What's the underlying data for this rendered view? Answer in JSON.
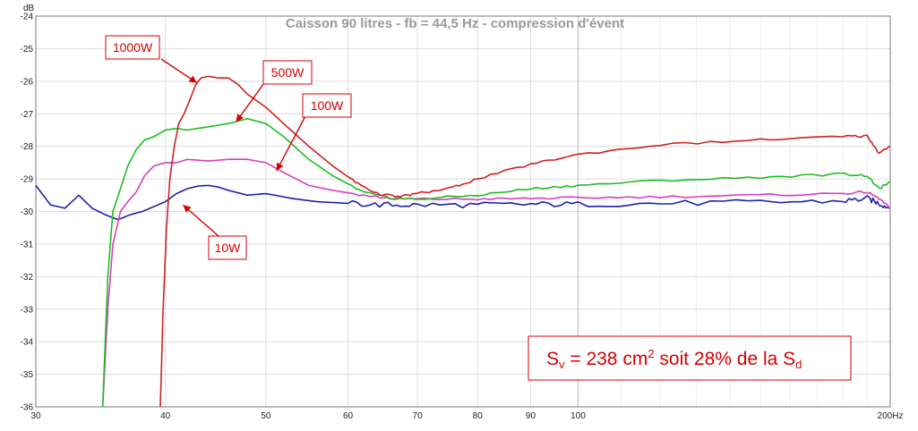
{
  "chart_data": {
    "type": "line",
    "title": "Caisson 90 litres - fb = 44,5 Hz - compression d'évent",
    "ylabel": "dB",
    "xlabel": "",
    "x_scale": "log",
    "xlim": [
      30,
      200
    ],
    "ylim": [
      -36,
      -24
    ],
    "grid": true,
    "x_ticks": [
      {
        "value": 30,
        "label": "30"
      },
      {
        "value": 40,
        "label": "40"
      },
      {
        "value": 50,
        "label": "50"
      },
      {
        "value": 60,
        "label": "60"
      },
      {
        "value": 70,
        "label": "70"
      },
      {
        "value": 80,
        "label": "80"
      },
      {
        "value": 90,
        "label": "90"
      },
      {
        "value": 100,
        "label": "100"
      },
      {
        "value": 200,
        "label": "200Hz"
      }
    ],
    "y_ticks": [
      {
        "value": -24,
        "label": "-24"
      },
      {
        "value": -25,
        "label": "-25"
      },
      {
        "value": -26,
        "label": "-26"
      },
      {
        "value": -27,
        "label": "-27"
      },
      {
        "value": -28,
        "label": "-28"
      },
      {
        "value": -29,
        "label": "-29"
      },
      {
        "value": -30,
        "label": "-30"
      },
      {
        "value": -31,
        "label": "-31"
      },
      {
        "value": -32,
        "label": "-32"
      },
      {
        "value": -33,
        "label": "-33"
      },
      {
        "value": -34,
        "label": "-34"
      },
      {
        "value": -35,
        "label": "-35"
      },
      {
        "value": -36,
        "label": "-36"
      }
    ],
    "series": [
      {
        "name": "10W",
        "color": "#1f1fa8",
        "x": [
          30,
          31,
          32,
          33,
          34,
          35,
          36,
          37,
          38,
          39,
          40,
          41,
          42,
          43,
          44,
          45,
          46,
          48,
          50,
          53,
          56,
          60,
          65,
          70,
          80,
          90,
          100,
          120,
          150,
          180,
          190,
          195,
          200
        ],
        "y": [
          -29.2,
          -29.8,
          -29.9,
          -29.5,
          -29.9,
          -30.1,
          -30.25,
          -30.1,
          -30.0,
          -29.85,
          -29.7,
          -29.45,
          -29.3,
          -29.22,
          -29.2,
          -29.25,
          -29.35,
          -29.5,
          -29.45,
          -29.6,
          -29.7,
          -29.75,
          -29.8,
          -29.8,
          -29.8,
          -29.78,
          -29.78,
          -29.75,
          -29.72,
          -29.68,
          -29.6,
          -29.75,
          -29.9
        ]
      },
      {
        "name": "100W",
        "color": "#d43fc0",
        "x": [
          34.8,
          35.2,
          35.6,
          36.2,
          36.8,
          37.5,
          38.2,
          39,
          40,
          41,
          42,
          44,
          46,
          48,
          50,
          52,
          55,
          58,
          62,
          66,
          70,
          80,
          90,
          100,
          120,
          150,
          180,
          190,
          195,
          200
        ],
        "y": [
          -36.0,
          -33.0,
          -31.0,
          -30.0,
          -29.7,
          -29.4,
          -28.9,
          -28.6,
          -28.5,
          -28.5,
          -28.4,
          -28.45,
          -28.4,
          -28.4,
          -28.5,
          -28.8,
          -29.2,
          -29.35,
          -29.5,
          -29.6,
          -29.62,
          -29.62,
          -29.6,
          -29.58,
          -29.55,
          -29.5,
          -29.45,
          -29.4,
          -29.6,
          -29.9
        ]
      },
      {
        "name": "500W",
        "color": "#22bb22",
        "x": [
          34.8,
          35.2,
          35.6,
          36.2,
          36.8,
          37.5,
          38.2,
          39,
          40,
          41,
          42,
          44,
          46,
          48,
          50,
          52,
          55,
          58,
          62,
          66,
          70,
          80,
          90,
          100,
          120,
          150,
          180,
          190,
          195,
          200
        ],
        "y": [
          -36.0,
          -32.0,
          -30.0,
          -29.3,
          -28.6,
          -28.1,
          -27.8,
          -27.7,
          -27.5,
          -27.45,
          -27.5,
          -27.4,
          -27.3,
          -27.15,
          -27.3,
          -27.7,
          -28.4,
          -28.9,
          -29.4,
          -29.6,
          -29.62,
          -29.5,
          -29.3,
          -29.2,
          -29.05,
          -28.95,
          -28.85,
          -28.9,
          -29.3,
          -29.1
        ]
      },
      {
        "name": "1000W",
        "color": "#cc2222",
        "x": [
          39.55,
          39.8,
          40.1,
          40.4,
          40.8,
          41.2,
          41.7,
          42.2,
          42.8,
          43.3,
          44,
          45,
          46,
          47,
          48,
          50,
          52,
          55,
          58,
          61,
          64,
          67,
          70,
          75,
          80,
          90,
          100,
          120,
          150,
          180,
          190,
          195,
          200
        ],
        "y": [
          -36.0,
          -33.0,
          -30.5,
          -29.0,
          -28.0,
          -27.3,
          -27.0,
          -26.6,
          -26.1,
          -25.9,
          -25.85,
          -25.9,
          -25.9,
          -26.1,
          -26.4,
          -26.8,
          -27.3,
          -28.0,
          -28.6,
          -29.1,
          -29.45,
          -29.55,
          -29.45,
          -29.3,
          -29.0,
          -28.55,
          -28.25,
          -27.95,
          -27.8,
          -27.7,
          -27.68,
          -28.2,
          -28.0
        ]
      }
    ],
    "annotations": [
      {
        "text": "1000W",
        "series": "1000W",
        "points_to": {
          "x": 42.9,
          "y": -26.05
        }
      },
      {
        "text": "500W",
        "series": "500W",
        "points_to": {
          "x": 46.8,
          "y": -27.25
        }
      },
      {
        "text": "100W",
        "series": "100W",
        "points_to": {
          "x": 51.2,
          "y": -28.75
        }
      },
      {
        "text": "10W",
        "series": "10W",
        "points_to": {
          "x": 41.6,
          "y": -29.8
        }
      }
    ],
    "note": {
      "sv_prefix": "S",
      "sv_sub": "v",
      "body": " = 238 cm",
      "sup": "2",
      "tail": " soit 28% de la S",
      "sd_sub": "d"
    }
  },
  "colors": {
    "grid": "#dcdcdc",
    "axis": "#7a7a7a",
    "annotation": "#d40000"
  }
}
